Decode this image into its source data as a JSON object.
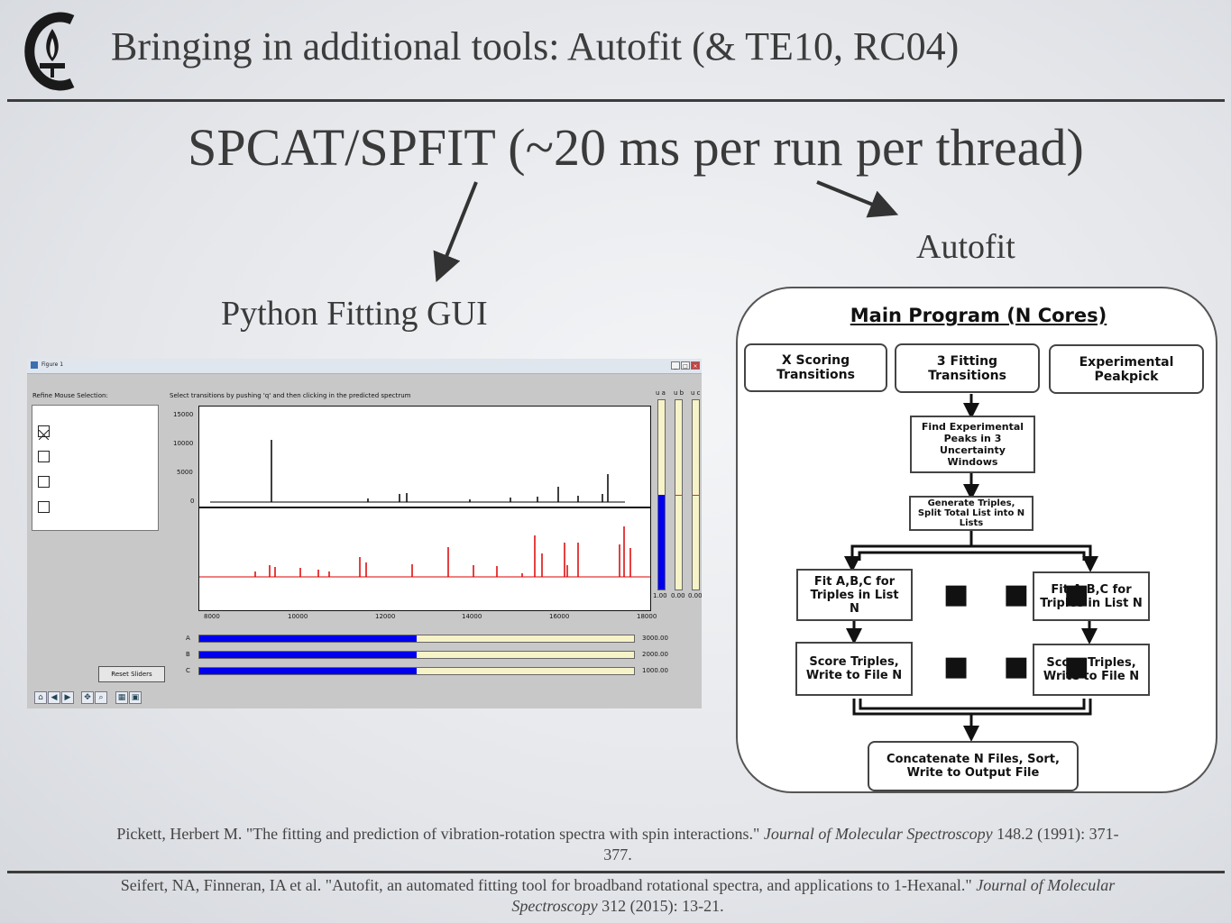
{
  "slide": {
    "title": "Bringing in additional tools: Autofit (& TE10, RC04)",
    "main_heading": "SPCAT/SPFIT (~20 ms per run per thread)",
    "autofit_label": "Autofit",
    "gui_label": "Python Fitting GUI"
  },
  "gui": {
    "window_title": "Figure 1",
    "window_buttons": [
      "_",
      "□",
      "×"
    ],
    "refine_label": "Refine Mouse Selection:",
    "instruction": "Select transitions by pushing 'q' and then clicking in the predicted spectrum",
    "checkboxes": [
      true,
      false,
      false,
      false
    ],
    "plot_yticks": [
      "15000",
      "10000",
      "5000",
      "0"
    ],
    "plot_xticks": [
      "8000",
      "10000",
      "12000",
      "14000",
      "16000",
      "18000"
    ],
    "vertical_sliders": [
      {
        "label": "u a",
        "value": "1.00",
        "fraction": 0.5
      },
      {
        "label": "u b",
        "value": "0.00",
        "fraction": 0
      },
      {
        "label": "u c",
        "value": "0.00",
        "fraction": 0
      }
    ],
    "horizontal_sliders": [
      {
        "label": "A",
        "value": "3000.00",
        "fraction": 0.5
      },
      {
        "label": "B",
        "value": "2000.00",
        "fraction": 0.5
      },
      {
        "label": "C",
        "value": "1000.00",
        "fraction": 0.5
      }
    ],
    "reset_button": "Reset Sliders",
    "toolbar_icons": [
      "home-icon",
      "back-icon",
      "forward-icon",
      "pan-icon",
      "zoom-icon",
      "configure-icon",
      "save-icon"
    ]
  },
  "flowchart": {
    "title": "Main Program (N Cores)",
    "box_scoring": "X Scoring Transitions",
    "box_fitting": "3 Fitting Transitions",
    "box_peakpick": "Experimental Peakpick",
    "box_find": "Find Experimental Peaks in 3 Uncertainty Windows",
    "box_generate": "Generate Triples, Split Total List into N Lists",
    "box_fit_left": "Fit A,B,C for Triples in List N",
    "box_fit_right": "Fit A,B,C for Triples in List N",
    "box_score_left": "Score Triples, Write to File N",
    "box_score_right": "Score Triples, Write to File N",
    "box_concat": "Concatenate N Files, Sort, Write to Output File",
    "ellipsis": "■ ■ ■"
  },
  "references": {
    "ref1_text": "Pickett, Herbert M. \"The fitting and prediction of vibration-rotation spectra with spin interactions.\"",
    "ref1_journal": "Journal of Molecular Spectroscopy",
    "ref1_tail": "148.2 (1991): 371-377.",
    "ref2_text": "Seifert, NA, Finneran, IA et al. \"Autofit, an automated fitting tool for broadband rotational spectra, and applications to 1-Hexanal.\"",
    "ref2_journal": "Journal of Molecular Spectroscopy",
    "ref2_tail": "312 (2015): 13-21."
  },
  "colors": {
    "slider_fill": "#0000ee",
    "slider_track": "#f7f3c8",
    "predicted_spectrum": "#dd0000",
    "experimental_spectrum": "#000000"
  }
}
